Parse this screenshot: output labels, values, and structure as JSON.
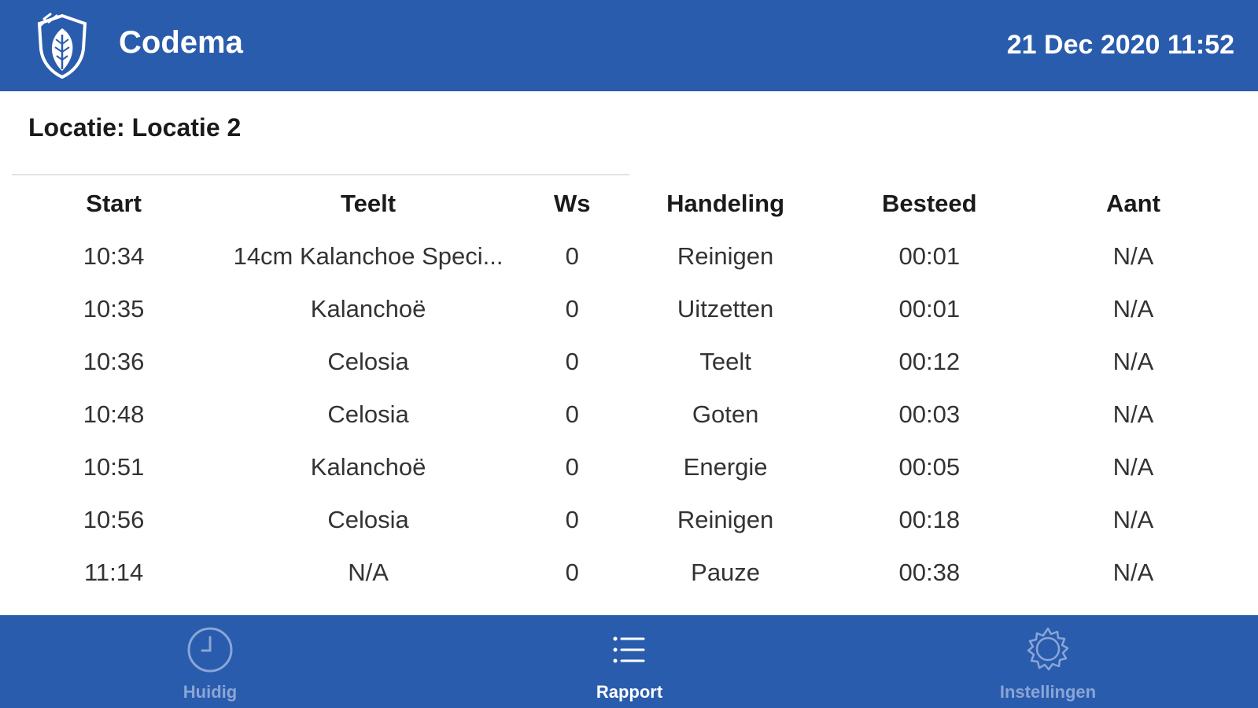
{
  "header": {
    "title": "Codema",
    "datetime": "21 Dec 2020 11:52",
    "logo_icon": "shield-leaf-logo-icon",
    "background": "#2a5cad"
  },
  "location": {
    "label": "Locatie: Locatie 2"
  },
  "table": {
    "columns": [
      "Start",
      "Teelt",
      "Ws",
      "Handeling",
      "Besteed",
      "Aant"
    ],
    "rows": [
      [
        "10:34",
        "14cm Kalanchoe Speci...",
        "0",
        "Reinigen",
        "00:01",
        "N/A"
      ],
      [
        "10:35",
        "Kalanchoë",
        "0",
        "Uitzetten",
        "00:01",
        "N/A"
      ],
      [
        "10:36",
        "Celosia",
        "0",
        "Teelt",
        "00:12",
        "N/A"
      ],
      [
        "10:48",
        "Celosia",
        "0",
        "Goten",
        "00:03",
        "N/A"
      ],
      [
        "10:51",
        "Kalanchoë",
        "0",
        "Energie",
        "00:05",
        "N/A"
      ],
      [
        "10:56",
        "Celosia",
        "0",
        "Reinigen",
        "00:18",
        "N/A"
      ],
      [
        "11:14",
        "N/A",
        "0",
        "Pauze",
        "00:38",
        "N/A"
      ]
    ]
  },
  "tabbar": {
    "items": [
      {
        "label": "Huidig",
        "icon": "clock-icon",
        "active": false
      },
      {
        "label": "Rapport",
        "icon": "list-icon",
        "active": true
      },
      {
        "label": "Instellingen",
        "icon": "gear-icon",
        "active": false
      }
    ],
    "active_color": "#ffffff",
    "inactive_color": "#8aa5d6"
  }
}
